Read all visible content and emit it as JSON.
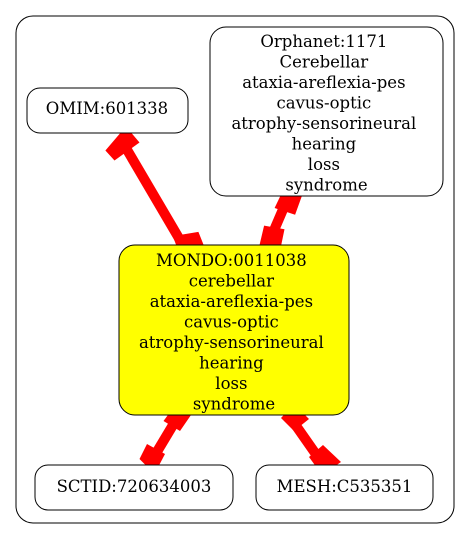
{
  "nodes": {
    "center": {
      "label_lines": [
        "MONDO:0011038",
        "cerebellar",
        "ataxia-areflexia-pes",
        "cavus-optic",
        "atrophy-sensorineural",
        "hearing",
        "loss",
        "syndrome"
      ],
      "fill": "#ffff00"
    },
    "omim": {
      "label_lines": [
        "OMIM:601338"
      ],
      "fill": "#ffffff"
    },
    "orphanet": {
      "label_lines": [
        "Orphanet:1171",
        "Cerebellar",
        "ataxia-areflexia-pes",
        "cavus-optic",
        "atrophy-sensorineural",
        "hearing",
        "loss",
        "syndrome"
      ],
      "fill": "#ffffff"
    },
    "sctid": {
      "label_lines": [
        "SCTID:720634003"
      ],
      "fill": "#ffffff"
    },
    "mesh": {
      "label_lines": [
        "MESH:C535351"
      ],
      "fill": "#ffffff"
    }
  },
  "edges": [
    {
      "from": "omim",
      "to": "center"
    },
    {
      "from": "orphanet",
      "to": "center"
    },
    {
      "from": "center",
      "to": "sctid"
    },
    {
      "from": "center",
      "to": "mesh"
    }
  ],
  "colors": {
    "edge": "#ff0000",
    "stroke": "#000000",
    "background": "#ffffff"
  }
}
